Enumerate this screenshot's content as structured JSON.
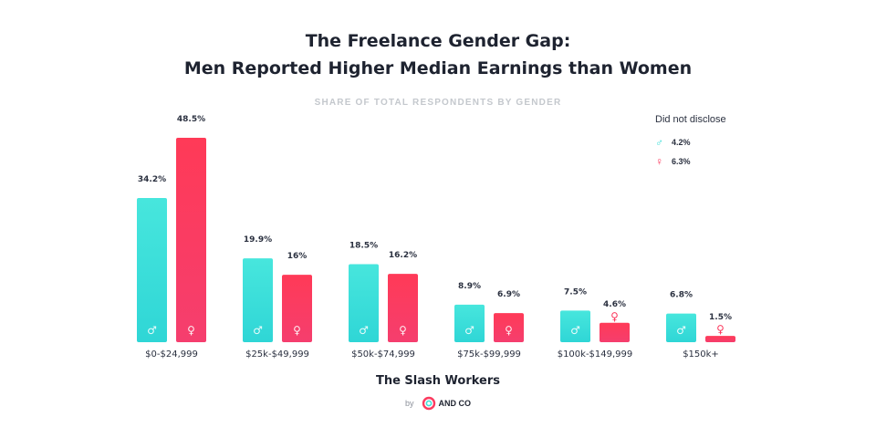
{
  "header": {
    "title_line1": "The Freelance Gender Gap:",
    "title_line2": "Men Reported Higher Median Earnings than Women",
    "subtitle": "SHARE OF TOTAL RESPONDENTS BY GENDER"
  },
  "legend": {
    "title": "Did not disclose",
    "items": [
      {
        "symbol": "♂",
        "value": "4.2%",
        "color": "#3fdfd8"
      },
      {
        "symbol": "♀",
        "value": "6.3%",
        "color": "#fb3b5f"
      }
    ]
  },
  "footer": {
    "title": "The Slash Workers",
    "by": "by",
    "brand": "AND CO"
  },
  "chart_data": {
    "type": "bar",
    "title": "The Freelance Gender Gap: Men Reported Higher Median Earnings than Women",
    "subtitle": "SHARE OF TOTAL RESPONDENTS BY GENDER",
    "categories": [
      "$0-$24,999",
      "$25k-$49,999",
      "$50k-$74,999",
      "$75k-$99,999",
      "$100k-$149,999",
      "$150k+"
    ],
    "series": [
      {
        "symbol": "♂",
        "color": "#3fdfd8",
        "values": [
          34.2,
          19.9,
          18.5,
          8.9,
          7.5,
          6.8
        ],
        "labels": [
          "34.2%",
          "19.9%",
          "18.5%",
          "8.9%",
          "7.5%",
          "6.8%"
        ]
      },
      {
        "symbol": "♀",
        "color": "#fb3b5f",
        "values": [
          48.5,
          16,
          16.2,
          6.9,
          4.6,
          1.5
        ],
        "labels": [
          "48.5%",
          "16%",
          "16.2%",
          "6.9%",
          "4.6%",
          "1.5%"
        ]
      }
    ],
    "ylim": [
      0,
      50
    ],
    "grid": false,
    "legend_position": "top-right"
  }
}
